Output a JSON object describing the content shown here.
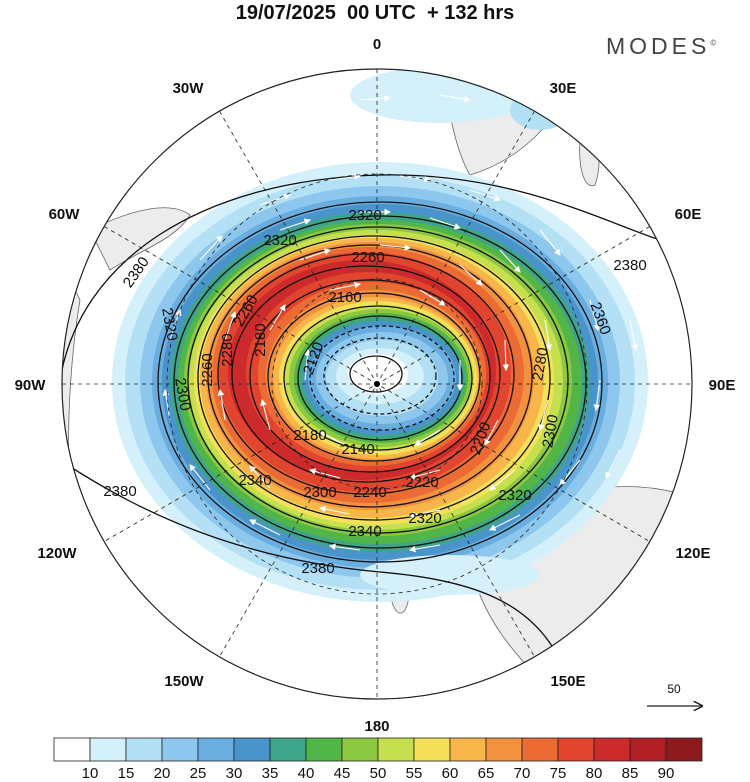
{
  "title": "19/07/2025  00 UTC  + 132 hrs",
  "brand": {
    "name": "MODES",
    "mark": "©"
  },
  "longitude_labels": [
    {
      "id": "lon-0",
      "text": "0"
    },
    {
      "id": "lon-30e",
      "text": "30E"
    },
    {
      "id": "lon-60e",
      "text": "60E"
    },
    {
      "id": "lon-90e",
      "text": "90E"
    },
    {
      "id": "lon-120e",
      "text": "120E"
    },
    {
      "id": "lon-150e",
      "text": "150E"
    },
    {
      "id": "lon-180",
      "text": "180"
    },
    {
      "id": "lon-150w",
      "text": "150W"
    },
    {
      "id": "lon-120w",
      "text": "120W"
    },
    {
      "id": "lon-90w",
      "text": "90W"
    },
    {
      "id": "lon-60w",
      "text": "60W"
    },
    {
      "id": "lon-30w",
      "text": "30W"
    }
  ],
  "contour_labels": [
    "2380",
    "2360",
    "2340",
    "2320",
    "2300",
    "2280",
    "2260",
    "2240",
    "2220",
    "2200",
    "2180",
    "2160",
    "2140",
    "2120"
  ],
  "wind_reference": {
    "value": "50"
  },
  "colorbar": {
    "colors": [
      "#ffffff",
      "#d4f0fb",
      "#b4e0f6",
      "#8ec7ee",
      "#6aaee0",
      "#4a94cc",
      "#3fa58a",
      "#52b547",
      "#8cc840",
      "#c6df4e",
      "#f5e05a",
      "#f7b54a",
      "#f2913e",
      "#ec6b34",
      "#e2452f",
      "#cc2a2b",
      "#b21e26",
      "#8e1a1d"
    ],
    "labels": [
      "10",
      "15",
      "20",
      "25",
      "30",
      "35",
      "40",
      "45",
      "50",
      "55",
      "60",
      "65",
      "70",
      "75",
      "80",
      "85",
      "90"
    ]
  }
}
